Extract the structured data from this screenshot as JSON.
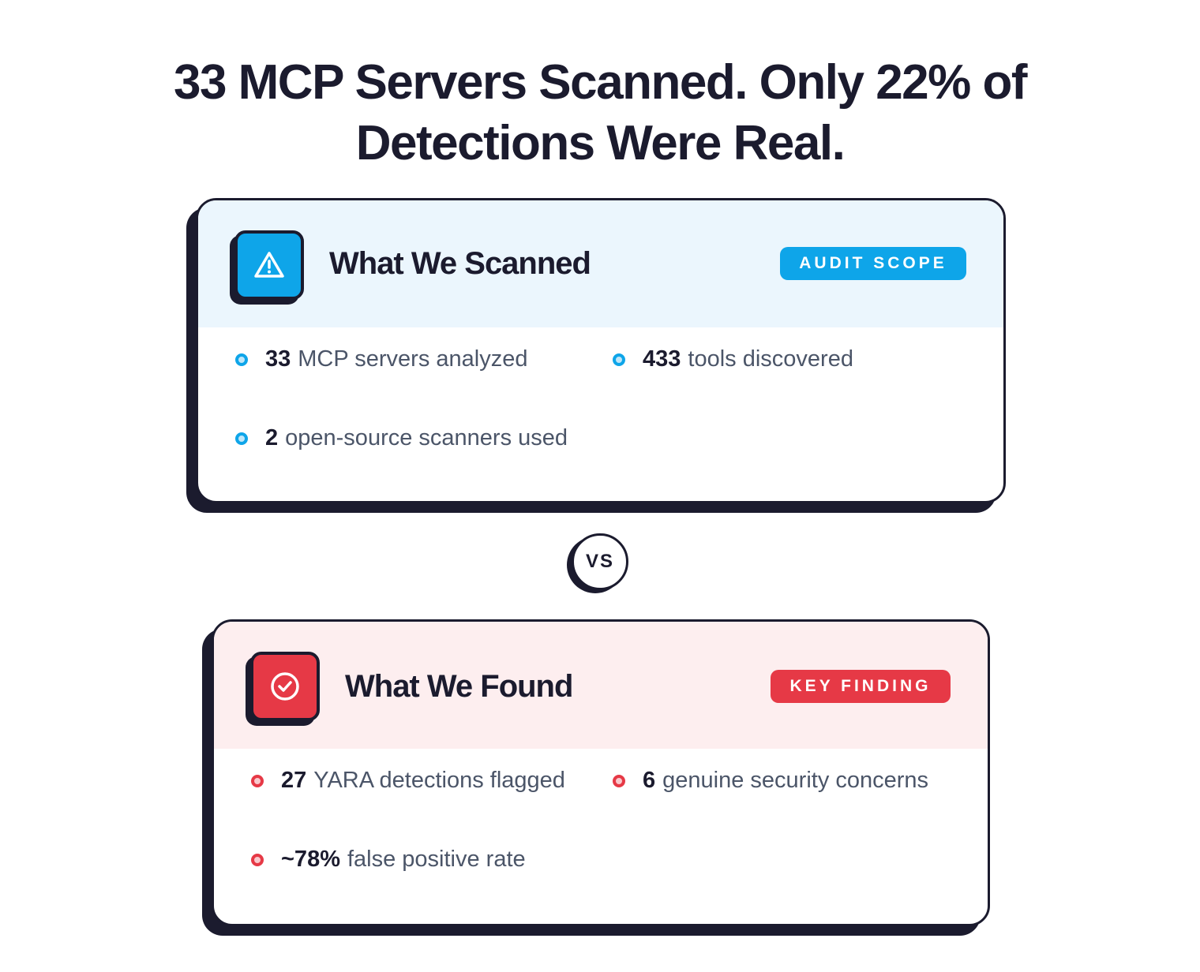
{
  "title": {
    "line1": "33 MCP Servers Scanned. Only 22% of",
    "line2": "Detections Were Real."
  },
  "colors": {
    "dark": "#1b1b2e",
    "blue": "#0ea5e9",
    "blue_bg": "#ebf6fd",
    "red": "#e63946",
    "red_bg": "#fdeeef"
  },
  "scanned": {
    "icon": "warning-triangle-icon",
    "title": "What We Scanned",
    "badge": "AUDIT SCOPE",
    "items": [
      {
        "value": "33",
        "text": "MCP servers analyzed"
      },
      {
        "value": "433",
        "text": "tools discovered"
      },
      {
        "value": "2",
        "text": "open-source scanners used"
      }
    ]
  },
  "vs": "VS",
  "found": {
    "icon": "check-circle-icon",
    "title": "What We Found",
    "badge": "KEY FINDING",
    "items": [
      {
        "value": "27",
        "text": "YARA detections flagged"
      },
      {
        "value": "6",
        "text": "genuine security concerns"
      },
      {
        "value": "~78%",
        "text": "false positive rate"
      }
    ]
  }
}
